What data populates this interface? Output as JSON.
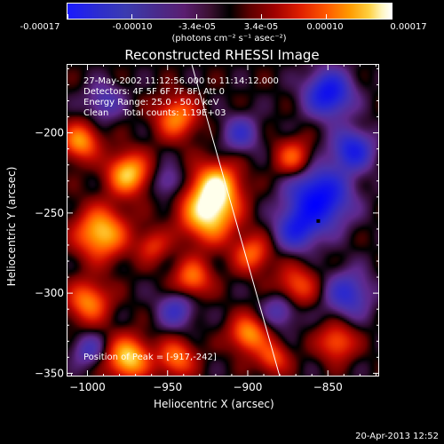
{
  "colorbar": {
    "tick_labels": [
      "-0.00017",
      "-0.00010",
      "-3.4e-05",
      "3.4e-05",
      "0.00010",
      "0.00017"
    ],
    "unit_label": "(photons cm⁻² s⁻¹ asec⁻²)"
  },
  "title": "Reconstructed RHESSI Image",
  "annotations": {
    "time_range": "27-May-2002 11:12:56.000 to 11:14:12.000",
    "detectors": "Detectors: 4F 5F 6F 7F 8F, Att 0",
    "energy": "Energy Range: 25.0 - 50.0 keV",
    "method": "Clean     Total counts: 1.19E+03",
    "peak": "Position of Peak = [-917,-242]"
  },
  "footer": "20-Apr-2013 12:52",
  "chart_data": {
    "type": "heatmap",
    "title": "Reconstructed RHESSI Image",
    "xlabel": "Heliocentric X (arcsec)",
    "ylabel": "Heliocentric Y (arcsec)",
    "xlim": [
      -1013,
      -818
    ],
    "ylim": [
      -352,
      -157
    ],
    "xticks": [
      -1000,
      -950,
      -900,
      -850
    ],
    "xtick_labels": [
      "−1000",
      "−950",
      "−900",
      "−850"
    ],
    "yticks": [
      -350,
      -300,
      -250,
      -200
    ],
    "ytick_labels": [
      "−350",
      "−300",
      "−250",
      "−200"
    ],
    "colorbar_range": [
      -0.00017,
      0.00017
    ],
    "peak_position": [
      -917,
      -242
    ],
    "limb_line": [
      [
        -935,
        -157
      ],
      [
        -880,
        -352
      ]
    ],
    "marker": [
      -856,
      -255
    ],
    "blobs": [
      {
        "x": -925,
        "y": -250,
        "v": 0.95,
        "s": 12
      },
      {
        "x": -920,
        "y": -232,
        "v": 0.8,
        "s": 10
      },
      {
        "x": -975,
        "y": -225,
        "v": 0.85,
        "s": 9
      },
      {
        "x": -992,
        "y": -262,
        "v": 0.85,
        "s": 11
      },
      {
        "x": -1005,
        "y": -205,
        "v": 0.7,
        "s": 8
      },
      {
        "x": -945,
        "y": -190,
        "v": 0.65,
        "s": 9
      },
      {
        "x": -872,
        "y": -215,
        "v": 0.55,
        "s": 8
      },
      {
        "x": -898,
        "y": -275,
        "v": 0.55,
        "s": 8
      },
      {
        "x": -935,
        "y": -290,
        "v": 0.6,
        "s": 8
      },
      {
        "x": -870,
        "y": -295,
        "v": 0.5,
        "s": 9
      },
      {
        "x": -1000,
        "y": -305,
        "v": 0.65,
        "s": 9
      },
      {
        "x": -975,
        "y": -340,
        "v": 0.9,
        "s": 9
      },
      {
        "x": -945,
        "y": -340,
        "v": 0.6,
        "s": 8
      },
      {
        "x": -900,
        "y": -325,
        "v": 0.7,
        "s": 8
      },
      {
        "x": -845,
        "y": -330,
        "v": 0.55,
        "s": 8
      },
      {
        "x": -885,
        "y": -340,
        "v": 0.5,
        "s": 7
      },
      {
        "x": -960,
        "y": -270,
        "v": 0.4,
        "s": 7
      },
      {
        "x": -850,
        "y": -175,
        "v": -0.85,
        "s": 10
      },
      {
        "x": -856,
        "y": -240,
        "v": -0.95,
        "s": 13
      },
      {
        "x": -835,
        "y": -210,
        "v": -0.7,
        "s": 9
      },
      {
        "x": -838,
        "y": -300,
        "v": -0.55,
        "s": 10
      },
      {
        "x": -870,
        "y": -260,
        "v": -0.6,
        "s": 9
      },
      {
        "x": -945,
        "y": -310,
        "v": -0.45,
        "s": 8
      },
      {
        "x": -990,
        "y": -180,
        "v": -0.4,
        "s": 8
      },
      {
        "x": -905,
        "y": -200,
        "v": -0.45,
        "s": 8
      },
      {
        "x": -950,
        "y": -230,
        "v": -0.35,
        "s": 7
      },
      {
        "x": -1000,
        "y": -335,
        "v": -0.4,
        "s": 7
      },
      {
        "x": -880,
        "y": -310,
        "v": -0.4,
        "s": 8
      }
    ]
  }
}
